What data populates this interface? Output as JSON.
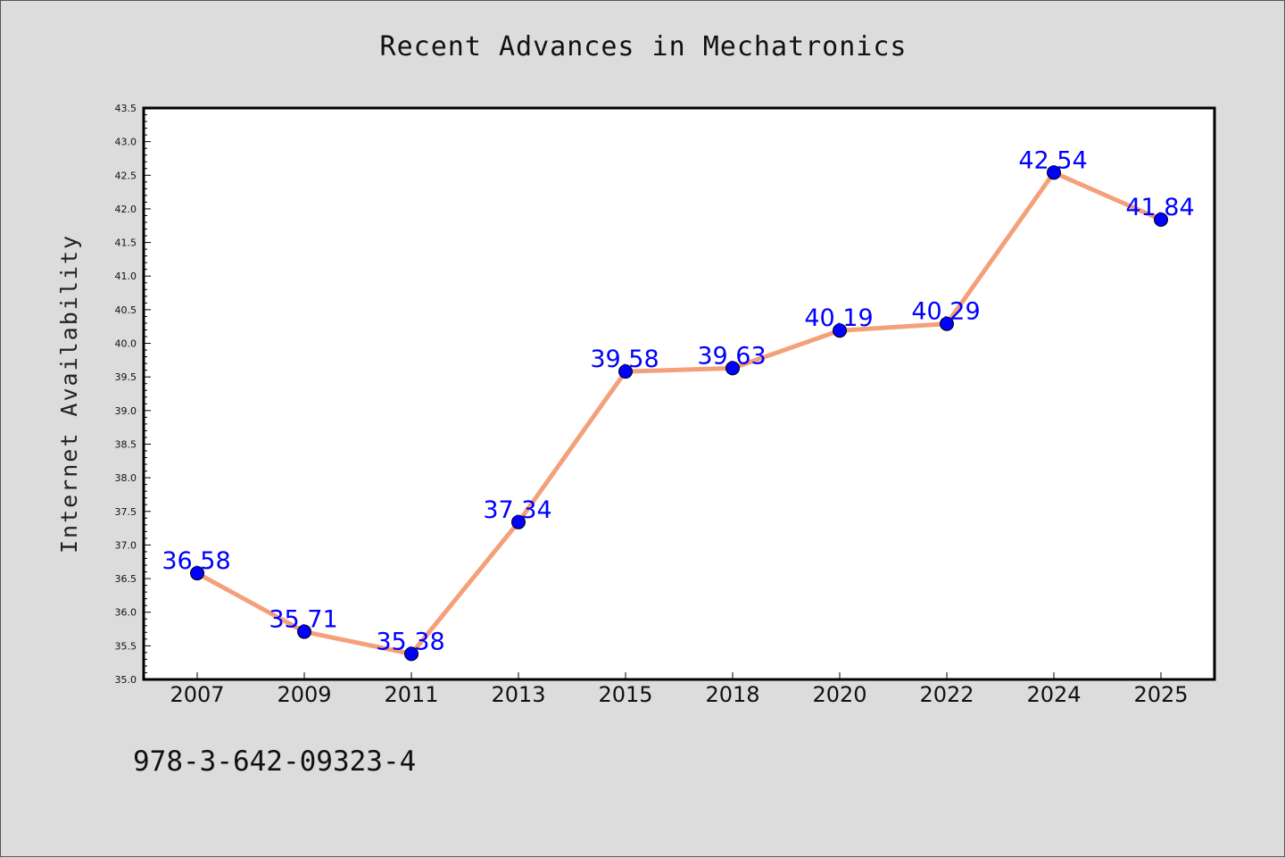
{
  "colors": {
    "figure_background": "#dcdcdc",
    "plot_background": "#ffffff",
    "line": "#f4a07a",
    "marker": "#0000ff",
    "data_label": "#0000ff"
  },
  "footer_text": "978-3-642-09323-4",
  "chart_data": {
    "type": "line",
    "title": "Recent Advances in Mechatronics",
    "xlabel": "",
    "ylabel": "Internet Availability",
    "categories": [
      "2007",
      "2009",
      "2011",
      "2013",
      "2015",
      "2018",
      "2020",
      "2022",
      "2024",
      "2025"
    ],
    "series": [
      {
        "values": [
          36.58,
          35.71,
          35.38,
          37.34,
          39.58,
          39.63,
          40.19,
          40.29,
          42.54,
          41.84
        ],
        "labels": [
          "36.58",
          "35.71",
          "35.38",
          "37.34",
          "39.58",
          "39.63",
          "40.19",
          "40.29",
          "42.54",
          "41.84"
        ]
      }
    ],
    "ylim": [
      35.0,
      43.5
    ],
    "yticks": [
      "35.0",
      "35.5",
      "36.0",
      "36.5",
      "37.0",
      "37.5",
      "38.0",
      "38.5",
      "39.0",
      "39.5",
      "40.0",
      "40.5",
      "41.0",
      "41.5",
      "42.0",
      "42.5",
      "43.0",
      "43.5"
    ],
    "grid": false,
    "legend": "none",
    "markers": "circle"
  }
}
